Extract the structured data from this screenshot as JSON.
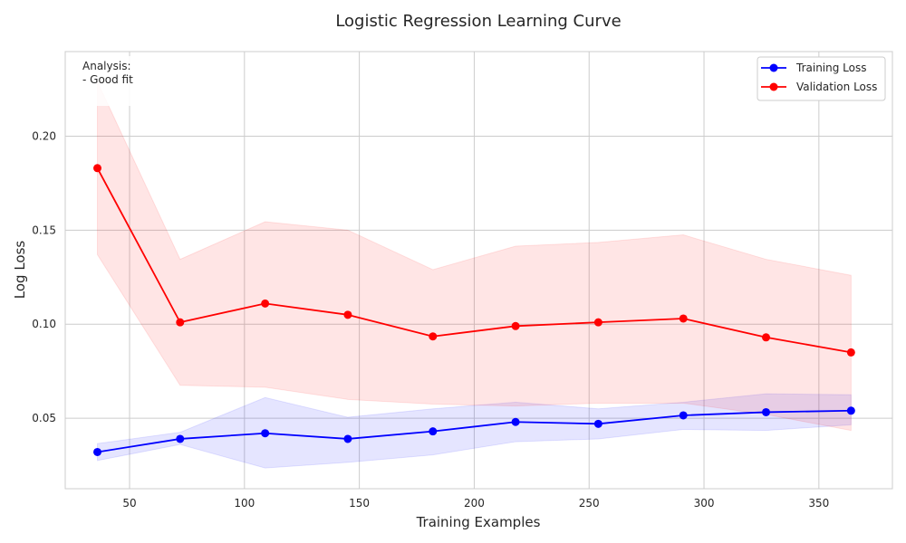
{
  "chart_data": {
    "type": "line",
    "title": "Logistic Regression Learning Curve",
    "xlabel": "Training Examples",
    "ylabel": "Log Loss",
    "xlim": [
      22,
      382
    ],
    "ylim": [
      0.0125,
      0.245
    ],
    "xticks": [
      50,
      100,
      150,
      200,
      250,
      300,
      350
    ],
    "yticks": [
      0.05,
      0.1,
      0.15,
      0.2
    ],
    "ytick_labels": [
      "0.05",
      "0.10",
      "0.15",
      "0.20"
    ],
    "grid": true,
    "legend_position": "top-right",
    "x": [
      36,
      72,
      109,
      145,
      182,
      218,
      254,
      291,
      327,
      364
    ],
    "series": [
      {
        "name": "Training Loss",
        "color": "#0000ff",
        "band_color": "#0000ff",
        "values": [
          0.032,
          0.039,
          0.042,
          0.039,
          0.043,
          0.048,
          0.047,
          0.0515,
          0.0532,
          0.054
        ],
        "lower": [
          0.0275,
          0.036,
          0.0235,
          0.0265,
          0.0305,
          0.0375,
          0.039,
          0.044,
          0.0435,
          0.0465
        ],
        "upper": [
          0.0365,
          0.0425,
          0.061,
          0.0505,
          0.055,
          0.0585,
          0.055,
          0.0585,
          0.063,
          0.0625
        ]
      },
      {
        "name": "Validation Loss",
        "color": "#ff0000",
        "band_color": "#ff0000",
        "values": [
          0.183,
          0.101,
          0.111,
          0.105,
          0.0935,
          0.099,
          0.101,
          0.103,
          0.093,
          0.085
        ],
        "lower": [
          0.137,
          0.0675,
          0.0665,
          0.06,
          0.0575,
          0.0565,
          0.058,
          0.058,
          0.052,
          0.0435
        ],
        "upper": [
          0.229,
          0.1345,
          0.1545,
          0.15,
          0.129,
          0.1415,
          0.1435,
          0.1475,
          0.1345,
          0.126
        ]
      }
    ],
    "annotation": {
      "lines": [
        "Analysis:",
        "- Good fit"
      ]
    }
  }
}
